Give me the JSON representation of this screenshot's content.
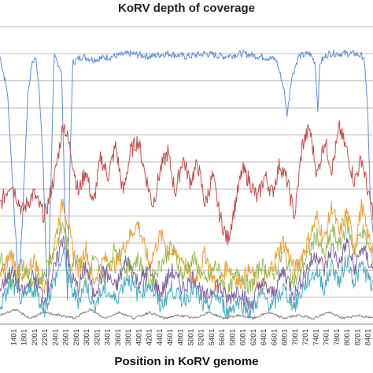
{
  "chart_data": {
    "type": "line",
    "title": "KoRV depth of coverage",
    "xlabel": "Position in KoRV genome",
    "ylabel": "",
    "x_tick_labels": [
      "1401",
      "1801",
      "2001",
      "2201",
      "2401",
      "2601",
      "2801",
      "3001",
      "3201",
      "3401",
      "3601",
      "3801",
      "4001",
      "4201",
      "4401",
      "4601",
      "4801",
      "5001",
      "5201",
      "5401",
      "5601",
      "5801",
      "6001",
      "6201",
      "6401",
      "6601",
      "6801",
      "7001",
      "7201",
      "7401",
      "7601",
      "7801",
      "8001",
      "8201",
      "8401"
    ],
    "grid": true,
    "legend": "none",
    "series": [
      {
        "color": "#5b8fd0",
        "points": [
          [
            0,
            0.9
          ],
          [
            0.02,
            0.78
          ],
          [
            0.035,
            0.45
          ],
          [
            0.05,
            0.12
          ],
          [
            0.06,
            0.35
          ],
          [
            0.075,
            0.78
          ],
          [
            0.085,
            0.87
          ],
          [
            0.095,
            0.9
          ],
          [
            0.105,
            0.8
          ],
          [
            0.115,
            0.55
          ],
          [
            0.122,
            0.3
          ],
          [
            0.128,
            0.05
          ],
          [
            0.135,
            0.4
          ],
          [
            0.145,
            0.9
          ],
          [
            0.155,
            0.88
          ],
          [
            0.165,
            0.85
          ],
          [
            0.175,
            0.35
          ],
          [
            0.181,
            0.08
          ],
          [
            0.188,
            0.55
          ],
          [
            0.195,
            0.88
          ],
          [
            0.22,
            0.9
          ],
          [
            0.25,
            0.89
          ],
          [
            0.3,
            0.9
          ],
          [
            0.35,
            0.91
          ],
          [
            0.4,
            0.9
          ],
          [
            0.45,
            0.91
          ],
          [
            0.5,
            0.9
          ],
          [
            0.55,
            0.91
          ],
          [
            0.6,
            0.9
          ],
          [
            0.65,
            0.91
          ],
          [
            0.7,
            0.9
          ],
          [
            0.74,
            0.89
          ],
          [
            0.76,
            0.8
          ],
          [
            0.77,
            0.7
          ],
          [
            0.78,
            0.82
          ],
          [
            0.8,
            0.9
          ],
          [
            0.83,
            0.91
          ],
          [
            0.845,
            0.88
          ],
          [
            0.852,
            0.72
          ],
          [
            0.858,
            0.88
          ],
          [
            0.88,
            0.91
          ],
          [
            0.92,
            0.91
          ],
          [
            0.95,
            0.91
          ],
          [
            0.975,
            0.9
          ],
          [
            0.985,
            0.75
          ],
          [
            0.993,
            0.4
          ],
          [
            1.0,
            0.3
          ]
        ]
      },
      {
        "color": "#c0504d",
        "points": [
          [
            0,
            0.4
          ],
          [
            0.03,
            0.48
          ],
          [
            0.06,
            0.38
          ],
          [
            0.09,
            0.44
          ],
          [
            0.12,
            0.36
          ],
          [
            0.15,
            0.52
          ],
          [
            0.17,
            0.68
          ],
          [
            0.19,
            0.58
          ],
          [
            0.21,
            0.44
          ],
          [
            0.23,
            0.52
          ],
          [
            0.25,
            0.4
          ],
          [
            0.27,
            0.56
          ],
          [
            0.29,
            0.5
          ],
          [
            0.31,
            0.6
          ],
          [
            0.33,
            0.44
          ],
          [
            0.35,
            0.58
          ],
          [
            0.37,
            0.62
          ],
          [
            0.39,
            0.5
          ],
          [
            0.41,
            0.4
          ],
          [
            0.43,
            0.52
          ],
          [
            0.45,
            0.58
          ],
          [
            0.47,
            0.44
          ],
          [
            0.49,
            0.56
          ],
          [
            0.51,
            0.48
          ],
          [
            0.53,
            0.54
          ],
          [
            0.55,
            0.4
          ],
          [
            0.57,
            0.5
          ],
          [
            0.59,
            0.36
          ],
          [
            0.61,
            0.28
          ],
          [
            0.63,
            0.4
          ],
          [
            0.65,
            0.52
          ],
          [
            0.67,
            0.48
          ],
          [
            0.69,
            0.42
          ],
          [
            0.71,
            0.5
          ],
          [
            0.73,
            0.44
          ],
          [
            0.75,
            0.54
          ],
          [
            0.77,
            0.48
          ],
          [
            0.79,
            0.36
          ],
          [
            0.81,
            0.6
          ],
          [
            0.83,
            0.66
          ],
          [
            0.85,
            0.5
          ],
          [
            0.87,
            0.62
          ],
          [
            0.89,
            0.52
          ],
          [
            0.91,
            0.66
          ],
          [
            0.93,
            0.58
          ],
          [
            0.95,
            0.48
          ],
          [
            0.97,
            0.56
          ],
          [
            0.99,
            0.42
          ],
          [
            1.0,
            0.38
          ]
        ]
      },
      {
        "color": "#f0a030",
        "points": [
          [
            0,
            0.16
          ],
          [
            0.03,
            0.24
          ],
          [
            0.06,
            0.14
          ],
          [
            0.09,
            0.22
          ],
          [
            0.12,
            0.12
          ],
          [
            0.15,
            0.3
          ],
          [
            0.17,
            0.42
          ],
          [
            0.19,
            0.28
          ],
          [
            0.21,
            0.18
          ],
          [
            0.23,
            0.26
          ],
          [
            0.25,
            0.14
          ],
          [
            0.28,
            0.22
          ],
          [
            0.31,
            0.2
          ],
          [
            0.34,
            0.28
          ],
          [
            0.37,
            0.34
          ],
          [
            0.4,
            0.2
          ],
          [
            0.43,
            0.3
          ],
          [
            0.46,
            0.24
          ],
          [
            0.49,
            0.22
          ],
          [
            0.52,
            0.14
          ],
          [
            0.55,
            0.24
          ],
          [
            0.58,
            0.12
          ],
          [
            0.61,
            0.2
          ],
          [
            0.64,
            0.14
          ],
          [
            0.67,
            0.18
          ],
          [
            0.7,
            0.12
          ],
          [
            0.73,
            0.2
          ],
          [
            0.76,
            0.28
          ],
          [
            0.79,
            0.18
          ],
          [
            0.82,
            0.26
          ],
          [
            0.85,
            0.36
          ],
          [
            0.87,
            0.28
          ],
          [
            0.89,
            0.4
          ],
          [
            0.91,
            0.3
          ],
          [
            0.93,
            0.38
          ],
          [
            0.95,
            0.26
          ],
          [
            0.97,
            0.4
          ],
          [
            0.985,
            0.3
          ],
          [
            1.0,
            0.26
          ]
        ]
      },
      {
        "color": "#9bbb59",
        "points": [
          [
            0,
            0.22
          ],
          [
            0.03,
            0.14
          ],
          [
            0.06,
            0.2
          ],
          [
            0.09,
            0.12
          ],
          [
            0.12,
            0.18
          ],
          [
            0.15,
            0.26
          ],
          [
            0.17,
            0.34
          ],
          [
            0.19,
            0.2
          ],
          [
            0.21,
            0.24
          ],
          [
            0.23,
            0.14
          ],
          [
            0.25,
            0.22
          ],
          [
            0.28,
            0.16
          ],
          [
            0.31,
            0.26
          ],
          [
            0.34,
            0.18
          ],
          [
            0.37,
            0.22
          ],
          [
            0.4,
            0.14
          ],
          [
            0.43,
            0.2
          ],
          [
            0.46,
            0.26
          ],
          [
            0.49,
            0.16
          ],
          [
            0.52,
            0.22
          ],
          [
            0.55,
            0.14
          ],
          [
            0.58,
            0.2
          ],
          [
            0.61,
            0.1
          ],
          [
            0.64,
            0.18
          ],
          [
            0.67,
            0.12
          ],
          [
            0.7,
            0.2
          ],
          [
            0.73,
            0.16
          ],
          [
            0.76,
            0.24
          ],
          [
            0.79,
            0.14
          ],
          [
            0.82,
            0.22
          ],
          [
            0.85,
            0.3
          ],
          [
            0.87,
            0.22
          ],
          [
            0.89,
            0.32
          ],
          [
            0.91,
            0.26
          ],
          [
            0.93,
            0.34
          ],
          [
            0.95,
            0.24
          ],
          [
            0.97,
            0.32
          ],
          [
            1.0,
            0.22
          ]
        ]
      },
      {
        "color": "#8064a2",
        "points": [
          [
            0,
            0.12
          ],
          [
            0.03,
            0.18
          ],
          [
            0.06,
            0.1
          ],
          [
            0.09,
            0.16
          ],
          [
            0.12,
            0.08
          ],
          [
            0.15,
            0.2
          ],
          [
            0.17,
            0.3
          ],
          [
            0.19,
            0.16
          ],
          [
            0.21,
            0.12
          ],
          [
            0.23,
            0.2
          ],
          [
            0.25,
            0.1
          ],
          [
            0.28,
            0.18
          ],
          [
            0.31,
            0.12
          ],
          [
            0.34,
            0.22
          ],
          [
            0.37,
            0.14
          ],
          [
            0.4,
            0.18
          ],
          [
            0.43,
            0.1
          ],
          [
            0.46,
            0.18
          ],
          [
            0.49,
            0.12
          ],
          [
            0.52,
            0.16
          ],
          [
            0.55,
            0.08
          ],
          [
            0.58,
            0.14
          ],
          [
            0.61,
            0.08
          ],
          [
            0.64,
            0.12
          ],
          [
            0.67,
            0.06
          ],
          [
            0.7,
            0.14
          ],
          [
            0.73,
            0.1
          ],
          [
            0.76,
            0.18
          ],
          [
            0.79,
            0.1
          ],
          [
            0.82,
            0.18
          ],
          [
            0.85,
            0.24
          ],
          [
            0.87,
            0.18
          ],
          [
            0.89,
            0.26
          ],
          [
            0.91,
            0.2
          ],
          [
            0.93,
            0.28
          ],
          [
            0.95,
            0.18
          ],
          [
            0.97,
            0.26
          ],
          [
            1.0,
            0.18
          ]
        ]
      },
      {
        "color": "#4bacc6",
        "points": [
          [
            0,
            0.06
          ],
          [
            0.03,
            0.14
          ],
          [
            0.06,
            0.08
          ],
          [
            0.09,
            0.12
          ],
          [
            0.12,
            0.05
          ],
          [
            0.15,
            0.16
          ],
          [
            0.17,
            0.24
          ],
          [
            0.19,
            0.12
          ],
          [
            0.21,
            0.08
          ],
          [
            0.23,
            0.14
          ],
          [
            0.25,
            0.06
          ],
          [
            0.28,
            0.12
          ],
          [
            0.31,
            0.08
          ],
          [
            0.34,
            0.16
          ],
          [
            0.37,
            0.1
          ],
          [
            0.4,
            0.14
          ],
          [
            0.43,
            0.06
          ],
          [
            0.46,
            0.12
          ],
          [
            0.49,
            0.08
          ],
          [
            0.52,
            0.12
          ],
          [
            0.55,
            0.05
          ],
          [
            0.58,
            0.1
          ],
          [
            0.61,
            0.04
          ],
          [
            0.64,
            0.08
          ],
          [
            0.67,
            0.04
          ],
          [
            0.7,
            0.1
          ],
          [
            0.73,
            0.06
          ],
          [
            0.76,
            0.12
          ],
          [
            0.79,
            0.06
          ],
          [
            0.82,
            0.14
          ],
          [
            0.85,
            0.18
          ],
          [
            0.87,
            0.12
          ],
          [
            0.89,
            0.2
          ],
          [
            0.91,
            0.14
          ],
          [
            0.93,
            0.22
          ],
          [
            0.95,
            0.14
          ],
          [
            0.97,
            0.2
          ],
          [
            1.0,
            0.12
          ]
        ]
      },
      {
        "color": "#7f7f7f",
        "points": [
          [
            0,
            0.03
          ],
          [
            0.04,
            0.05
          ],
          [
            0.08,
            0.02
          ],
          [
            0.12,
            0.04
          ],
          [
            0.16,
            0.03
          ],
          [
            0.2,
            0.02
          ],
          [
            0.24,
            0.05
          ],
          [
            0.28,
            0.02
          ],
          [
            0.32,
            0.04
          ],
          [
            0.36,
            0.02
          ],
          [
            0.4,
            0.04
          ],
          [
            0.44,
            0.02
          ],
          [
            0.48,
            0.03
          ],
          [
            0.52,
            0.02
          ],
          [
            0.56,
            0.04
          ],
          [
            0.6,
            0.02
          ],
          [
            0.64,
            0.03
          ],
          [
            0.68,
            0.02
          ],
          [
            0.72,
            0.04
          ],
          [
            0.76,
            0.02
          ],
          [
            0.8,
            0.03
          ],
          [
            0.84,
            0.02
          ],
          [
            0.88,
            0.04
          ],
          [
            0.92,
            0.02
          ],
          [
            0.96,
            0.03
          ],
          [
            1.0,
            0.02
          ]
        ]
      }
    ]
  }
}
